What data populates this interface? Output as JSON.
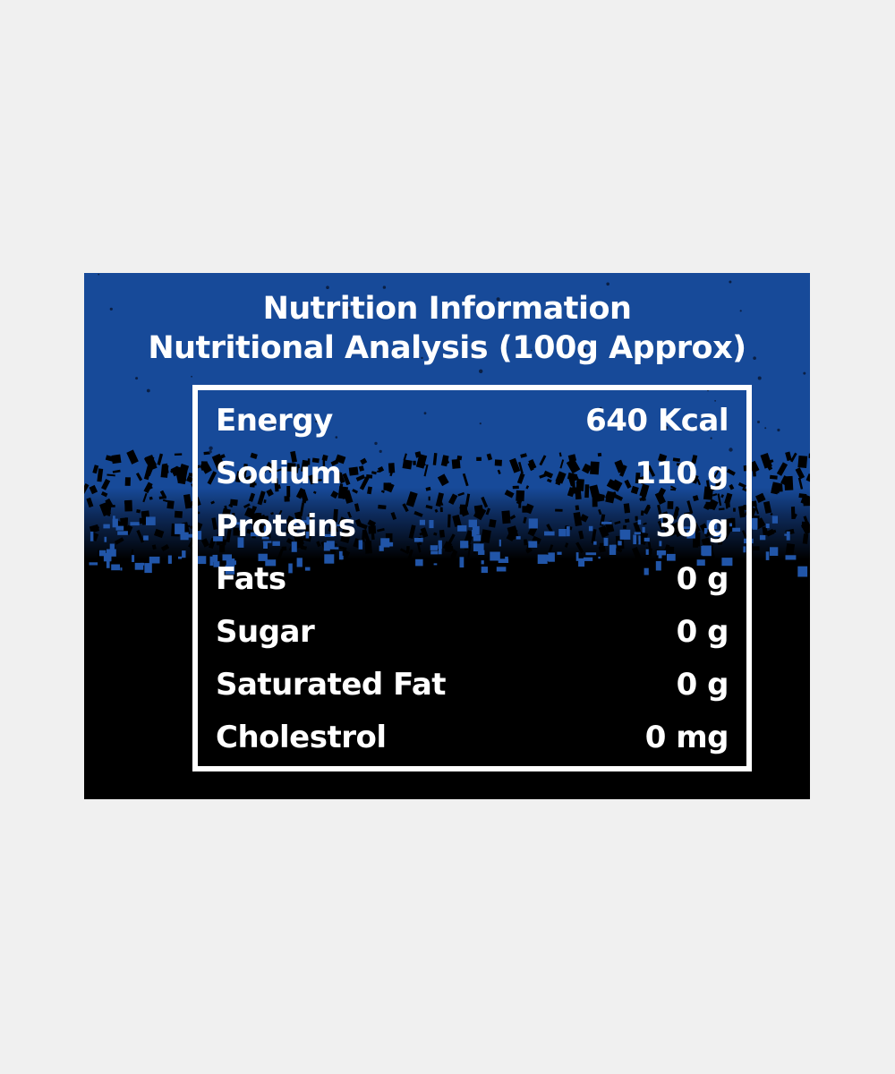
{
  "label": {
    "title": "Nutrition Information",
    "subtitle": "Nutritional Analysis  (100g Approx)",
    "colors": {
      "background": "#f0f0f0",
      "panel_top": "#174a99",
      "panel_bottom": "#000000",
      "text": "#ffffff"
    },
    "rows": [
      {
        "name": "Energy",
        "value": "640 Kcal"
      },
      {
        "name": "Sodium",
        "value": "110 g"
      },
      {
        "name": "Proteins",
        "value": "30 g"
      },
      {
        "name": "Fats",
        "value": "0 g"
      },
      {
        "name": "Sugar",
        "value": "0 g"
      },
      {
        "name": "Saturated Fat",
        "value": "0 g"
      },
      {
        "name": "Cholestrol",
        "value": "0 mg"
      }
    ]
  }
}
